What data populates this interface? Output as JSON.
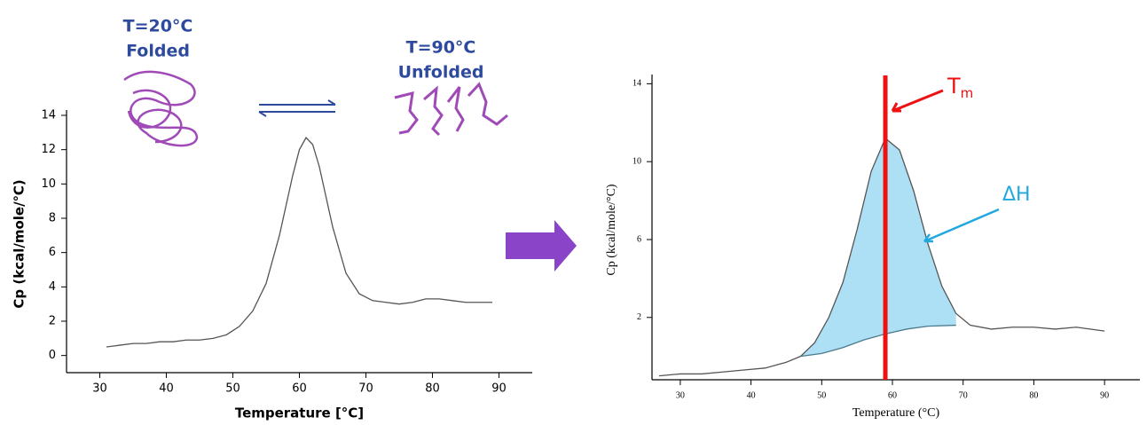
{
  "diagram": {
    "folded_temp": "T=20°C",
    "folded_label": "Folded",
    "unfolded_temp": "T=90°C",
    "unfolded_label": "Unfolded"
  },
  "chart_data": [
    {
      "type": "line",
      "x_label": "Temperature [°C]",
      "y_label": "Cp (kcal/mole/℃)",
      "xlim": [
        25,
        95
      ],
      "ylim": [
        -1,
        14
      ],
      "xticks": [
        30,
        40,
        50,
        60,
        70,
        80,
        90
      ],
      "yticks": [
        0,
        2,
        4,
        6,
        8,
        10,
        12,
        14
      ],
      "series": [
        {
          "color": "#555555",
          "x": [
            31,
            33,
            35,
            37,
            39,
            41,
            43,
            45,
            47,
            49,
            51,
            53,
            55,
            57,
            59,
            60,
            61,
            62,
            63,
            65,
            67,
            69,
            71,
            73,
            75,
            77,
            79,
            81,
            83,
            85,
            87,
            89
          ],
          "values": [
            0.5,
            0.6,
            0.7,
            0.7,
            0.8,
            0.8,
            0.9,
            0.9,
            1.0,
            1.2,
            1.7,
            2.6,
            4.2,
            7,
            10.5,
            12,
            12.7,
            12.3,
            11,
            7.5,
            4.8,
            3.6,
            3.2,
            3.1,
            3.0,
            3.1,
            3.3,
            3.3,
            3.2,
            3.1,
            3.1,
            3.1
          ]
        }
      ]
    },
    {
      "type": "line",
      "x_label": "Temperature (°C)",
      "y_label": "Cp (kcal/mole/°C)",
      "xlim": [
        26,
        95
      ],
      "ylim": [
        -1.2,
        14.2
      ],
      "xticks": [
        30,
        40,
        50,
        60,
        70,
        80,
        90
      ],
      "yticks": [
        2,
        6,
        10,
        14
      ],
      "series": [
        {
          "color": "#555555",
          "x": [
            27,
            30,
            33,
            36,
            39,
            42,
            45,
            47,
            49,
            51,
            53,
            55,
            57,
            59,
            61,
            63,
            65,
            67,
            69,
            71,
            74,
            77,
            80,
            83,
            86,
            90
          ],
          "values": [
            -1,
            -0.9,
            -0.9,
            -0.8,
            -0.7,
            -0.6,
            -0.3,
            0,
            0.7,
            2,
            3.8,
            6.5,
            9.5,
            11.2,
            10.6,
            8.5,
            5.8,
            3.6,
            2.2,
            1.6,
            1.4,
            1.5,
            1.5,
            1.4,
            1.5,
            1.3
          ]
        },
        {
          "color": "#4a7a8c",
          "x": [
            47,
            50,
            53,
            56,
            59,
            62,
            65,
            69
          ],
          "values": [
            0,
            0.15,
            0.45,
            0.85,
            1.15,
            1.4,
            1.55,
            1.6
          ]
        }
      ],
      "area_color": "#aee0f5",
      "vline": 59,
      "vline_color": "#ee1111",
      "tm_label": "T",
      "tm_sub": "m",
      "dh_label": "ΔH"
    }
  ]
}
